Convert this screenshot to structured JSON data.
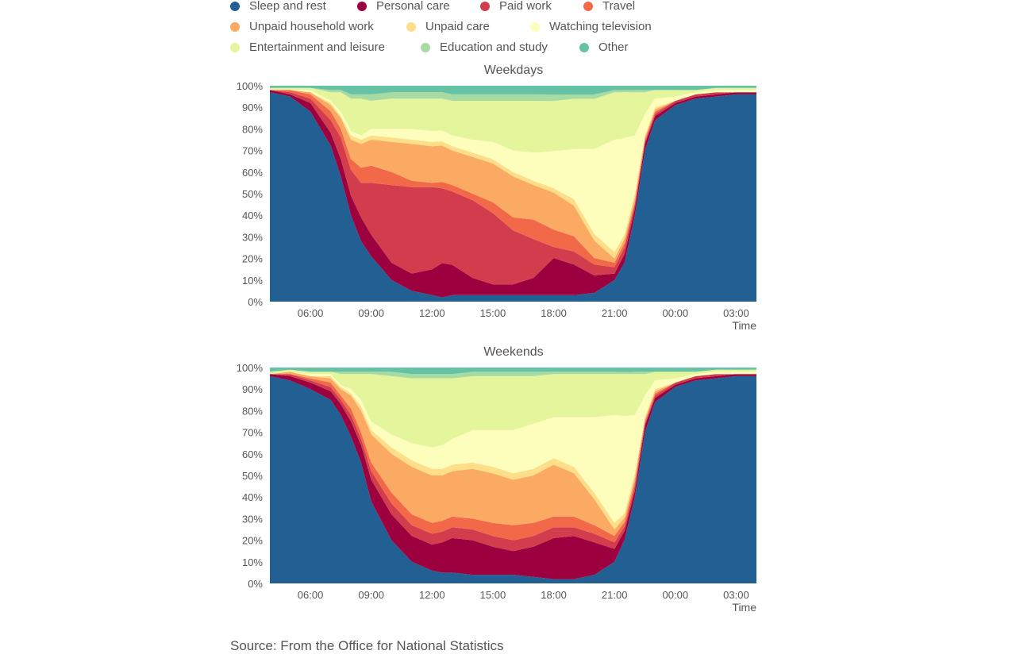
{
  "legend": [
    {
      "name": "Sleep and rest",
      "color": "#225f92"
    },
    {
      "name": "Personal care",
      "color": "#9d003f"
    },
    {
      "name": "Paid work",
      "color": "#d23d4d"
    },
    {
      "name": "Travel",
      "color": "#f2694a"
    },
    {
      "name": "Unpaid household work",
      "color": "#fbaa63"
    },
    {
      "name": "Unpaid care",
      "color": "#fede88"
    },
    {
      "name": "Watching television",
      "color": "#fefebc"
    },
    {
      "name": "Entertainment and leisure",
      "color": "#e4f59c"
    },
    {
      "name": "Education and study",
      "color": "#a8dba4"
    },
    {
      "name": "Other",
      "color": "#66c2a5"
    }
  ],
  "source": "Source: From the Office for National Statistics",
  "chart_data": [
    {
      "type": "area",
      "stacking": "percent",
      "title": "Weekdays",
      "xlabel": "Time",
      "ylabel": "",
      "ylim": [
        0,
        100
      ],
      "yticks": [
        "0%",
        "10%",
        "20%",
        "30%",
        "40%",
        "50%",
        "60%",
        "70%",
        "80%",
        "90%",
        "100%"
      ],
      "xticks": [
        "06:00",
        "09:00",
        "12:00",
        "15:00",
        "18:00",
        "21:00",
        "00:00",
        "03:00"
      ],
      "xrange_hours": [
        4,
        28
      ],
      "x": [
        4,
        5,
        6,
        7,
        7.5,
        8,
        8.5,
        9,
        10,
        11,
        12,
        12.5,
        13,
        14,
        15,
        16,
        17,
        18,
        19,
        20,
        21,
        21.5,
        22,
        22.5,
        23,
        24,
        25,
        26,
        27,
        28
      ],
      "series": [
        {
          "name": "Sleep and rest",
          "values": [
            97,
            95,
            88,
            73,
            58,
            40,
            28,
            21,
            10,
            5,
            3,
            2,
            3,
            3,
            3,
            3,
            3,
            3,
            3,
            4,
            10,
            18,
            40,
            70,
            84,
            91,
            94,
            95,
            96,
            96
          ]
        },
        {
          "name": "Personal care",
          "values": [
            1,
            1,
            4,
            6,
            8,
            9,
            11,
            10,
            8,
            8,
            12,
            16,
            14,
            8,
            5,
            5,
            8,
            17,
            14,
            8,
            3,
            4,
            3,
            3,
            2,
            1,
            1,
            1,
            1,
            1
          ]
        },
        {
          "name": "Paid work",
          "values": [
            0,
            1,
            2,
            6,
            10,
            12,
            16,
            24,
            36,
            40,
            38,
            35,
            34,
            36,
            33,
            25,
            18,
            5,
            6,
            5,
            3,
            3,
            2,
            1,
            1,
            1,
            1,
            1,
            0,
            0
          ]
        },
        {
          "name": "Travel",
          "values": [
            0,
            1,
            2,
            4,
            4,
            5,
            7,
            8,
            6,
            3,
            2,
            3,
            3,
            3,
            5,
            6,
            9,
            8,
            7,
            3,
            2,
            2,
            1,
            1,
            1,
            0,
            0,
            0,
            0,
            0
          ]
        },
        {
          "name": "Unpaid household work",
          "values": [
            0,
            0,
            1,
            3,
            5,
            9,
            11,
            12,
            14,
            17,
            17,
            17,
            16,
            17,
            18,
            19,
            16,
            17,
            14,
            8,
            2,
            2,
            2,
            1,
            1,
            0,
            0,
            0,
            0,
            0
          ]
        },
        {
          "name": "Unpaid care",
          "values": [
            0,
            0,
            0,
            1,
            1,
            2,
            2,
            2,
            2,
            2,
            2,
            2,
            2,
            2,
            2,
            2,
            2,
            2,
            3,
            3,
            3,
            2,
            2,
            1,
            1,
            0,
            0,
            0,
            0,
            0
          ]
        },
        {
          "name": "Watching television",
          "values": [
            0,
            0,
            1,
            1,
            2,
            2,
            2,
            3,
            4,
            5,
            5,
            5,
            5,
            6,
            8,
            10,
            13,
            17,
            23,
            39,
            52,
            44,
            27,
            10,
            4,
            2,
            1,
            1,
            1,
            1
          ]
        },
        {
          "name": "Entertainment and leisure",
          "values": [
            1,
            1,
            1,
            4,
            9,
            15,
            17,
            13,
            14,
            14,
            15,
            15,
            16,
            18,
            19,
            23,
            24,
            23,
            23,
            23,
            22,
            21,
            20,
            10,
            4,
            3,
            1,
            1,
            1,
            1
          ]
        },
        {
          "name": "Education and study",
          "values": [
            0,
            0,
            0,
            1,
            1,
            2,
            2,
            3,
            3,
            3,
            3,
            3,
            3,
            3,
            3,
            3,
            3,
            3,
            2,
            2,
            1,
            1,
            1,
            1,
            0,
            0,
            0,
            0,
            0,
            0
          ]
        },
        {
          "name": "Other",
          "values": [
            1,
            1,
            1,
            2,
            2,
            4,
            4,
            4,
            3,
            3,
            3,
            3,
            4,
            4,
            4,
            4,
            4,
            4,
            4,
            4,
            2,
            2,
            2,
            2,
            2,
            2,
            2,
            1,
            1,
            1
          ]
        }
      ]
    },
    {
      "type": "area",
      "stacking": "percent",
      "title": "Weekends",
      "xlabel": "Time",
      "ylabel": "",
      "ylim": [
        0,
        100
      ],
      "yticks": [
        "0%",
        "10%",
        "20%",
        "30%",
        "40%",
        "50%",
        "60%",
        "70%",
        "80%",
        "90%",
        "100%"
      ],
      "xticks": [
        "06:00",
        "09:00",
        "12:00",
        "15:00",
        "18:00",
        "21:00",
        "00:00",
        "03:00"
      ],
      "xrange_hours": [
        4,
        28
      ],
      "x": [
        4,
        5,
        6,
        7,
        7.5,
        8,
        8.5,
        9,
        10,
        11,
        12,
        12.5,
        13,
        14,
        15,
        16,
        17,
        18,
        19,
        20,
        21,
        21.5,
        22,
        22.5,
        23,
        24,
        25,
        26,
        27,
        28
      ],
      "series": [
        {
          "name": "Sleep and rest",
          "values": [
            96,
            94,
            90,
            85,
            78,
            68,
            56,
            38,
            20,
            10,
            6,
            5,
            5,
            4,
            4,
            4,
            3,
            2,
            2,
            4,
            10,
            20,
            40,
            70,
            84,
            91,
            94,
            95,
            96,
            96
          ]
        },
        {
          "name": "Personal care",
          "values": [
            1,
            2,
            3,
            4,
            5,
            7,
            8,
            10,
            12,
            12,
            12,
            14,
            16,
            16,
            13,
            11,
            14,
            19,
            20,
            15,
            6,
            4,
            3,
            3,
            2,
            1,
            1,
            1,
            1,
            1
          ]
        },
        {
          "name": "Paid work",
          "values": [
            0,
            1,
            1,
            2,
            2,
            3,
            3,
            4,
            5,
            5,
            5,
            5,
            5,
            5,
            5,
            5,
            5,
            5,
            4,
            4,
            3,
            2,
            2,
            1,
            1,
            1,
            1,
            1,
            0,
            0
          ]
        },
        {
          "name": "Travel",
          "values": [
            0,
            0,
            1,
            2,
            2,
            3,
            3,
            4,
            5,
            5,
            5,
            5,
            5,
            5,
            6,
            7,
            6,
            5,
            5,
            4,
            3,
            2,
            2,
            1,
            1,
            0,
            0,
            0,
            0,
            0
          ]
        },
        {
          "name": "Unpaid household work",
          "values": [
            0,
            1,
            1,
            2,
            3,
            6,
            10,
            13,
            18,
            22,
            22,
            21,
            21,
            23,
            23,
            21,
            22,
            24,
            20,
            12,
            3,
            2,
            2,
            1,
            1,
            0,
            0,
            0,
            0,
            0
          ]
        },
        {
          "name": "Unpaid care",
          "values": [
            0,
            0,
            0,
            1,
            1,
            1,
            2,
            2,
            3,
            3,
            3,
            3,
            3,
            3,
            3,
            3,
            3,
            3,
            3,
            3,
            3,
            2,
            2,
            1,
            1,
            0,
            0,
            0,
            0,
            0
          ]
        },
        {
          "name": "Watching television",
          "values": [
            0,
            0,
            1,
            1,
            1,
            2,
            3,
            4,
            6,
            8,
            10,
            11,
            12,
            15,
            17,
            20,
            21,
            19,
            23,
            35,
            50,
            44,
            27,
            10,
            4,
            2,
            1,
            1,
            1,
            1
          ]
        },
        {
          "name": "Entertainment and leisure",
          "values": [
            1,
            1,
            1,
            1,
            5,
            7,
            12,
            22,
            27,
            30,
            32,
            31,
            28,
            25,
            25,
            25,
            22,
            20,
            20,
            20,
            19,
            19,
            19,
            10,
            4,
            3,
            1,
            1,
            1,
            1
          ]
        },
        {
          "name": "Education and study",
          "values": [
            0,
            0,
            0,
            0,
            1,
            1,
            1,
            1,
            2,
            2,
            2,
            2,
            2,
            2,
            2,
            2,
            2,
            1,
            1,
            1,
            1,
            1,
            1,
            1,
            0,
            0,
            0,
            0,
            0,
            0
          ]
        },
        {
          "name": "Other",
          "values": [
            2,
            1,
            2,
            2,
            2,
            2,
            2,
            2,
            2,
            3,
            3,
            3,
            3,
            2,
            2,
            2,
            2,
            2,
            2,
            2,
            2,
            2,
            2,
            2,
            2,
            2,
            2,
            1,
            1,
            1
          ]
        }
      ]
    }
  ]
}
